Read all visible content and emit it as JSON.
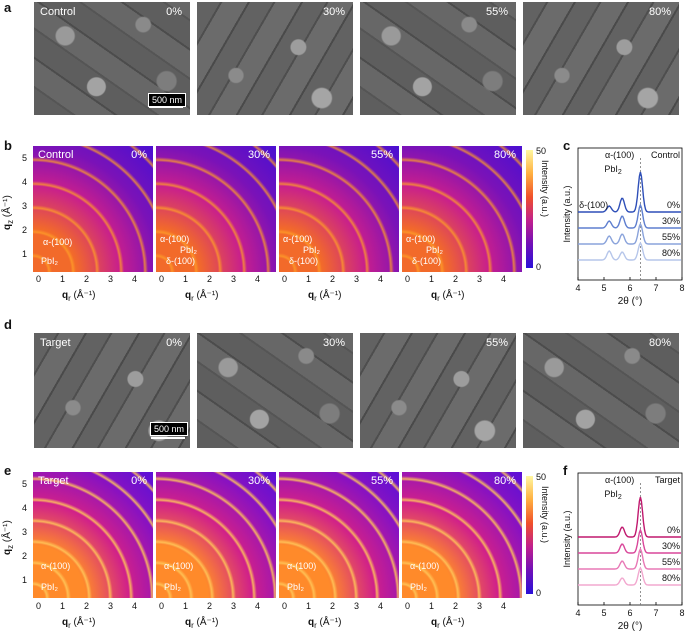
{
  "panel_letters": {
    "a": "a",
    "b": "b",
    "c": "c",
    "d": "d",
    "e": "e",
    "f": "f"
  },
  "panel_a": {
    "labels": [
      "Control",
      "0%",
      "30%",
      "55%",
      "80%"
    ],
    "scale": "500 nm"
  },
  "panel_b": {
    "labels": [
      "Control",
      "0%",
      "30%",
      "55%",
      "80%"
    ],
    "ann_alpha": "α-(100)",
    "ann_pbi2": "PbI₂",
    "ann_delta": "δ-(100)"
  },
  "panel_d": {
    "labels": [
      "Target",
      "0%",
      "30%",
      "55%",
      "80%"
    ],
    "scale": "500 nm"
  },
  "panel_e": {
    "labels": [
      "Target",
      "0%",
      "30%",
      "55%",
      "80%"
    ],
    "ann_alpha": "α-(100)",
    "ann_pbi2": "PbI₂"
  },
  "giwaxs_axes": {
    "y_ticks": [
      "1",
      "2",
      "3",
      "4",
      "5"
    ],
    "x_ticks": [
      "0",
      "1",
      "2",
      "3",
      "4"
    ],
    "x_label": "q",
    "x_sub": "r",
    "x_unit": " (Å⁻¹)",
    "y_label": "q",
    "y_sub": "z",
    "y_unit": " (Å⁻¹)",
    "cbar_label": "Intensity (a.u.)",
    "cbar_b_ticks": [
      "50",
      "0"
    ],
    "cbar_e_ticks": [
      "50",
      "0"
    ]
  },
  "panel_c": {
    "title": "Control",
    "ann_alpha": "α-(100)",
    "ann_pbi2": "PbI",
    "ann_pbi2_sub": "2",
    "ann_delta": "δ-(100)",
    "curve_labels": [
      "0%",
      "30%",
      "55%",
      "80%"
    ],
    "xlabel": "2θ (°)",
    "ylabel": "Intensity (a.u.)",
    "x_ticks": [
      "4",
      "5",
      "6",
      "7",
      "8"
    ]
  },
  "panel_f": {
    "title": "Target",
    "ann_alpha": "α-(100)",
    "ann_pbi2": "PbI",
    "ann_pbi2_sub": "2",
    "curve_labels": [
      "0%",
      "30%",
      "55%",
      "80%"
    ],
    "xlabel": "2θ (°)",
    "ylabel": "Intensity (a.u.)",
    "x_ticks": [
      "4",
      "5",
      "6",
      "7",
      "8"
    ]
  },
  "colors": {
    "c_curves": [
      "#2e4fb8",
      "#5f7fcf",
      "#8aa3db",
      "#b6c6ea"
    ],
    "f_curves": [
      "#c0186e",
      "#d9479a",
      "#e879b6",
      "#f2a8cf"
    ]
  }
}
